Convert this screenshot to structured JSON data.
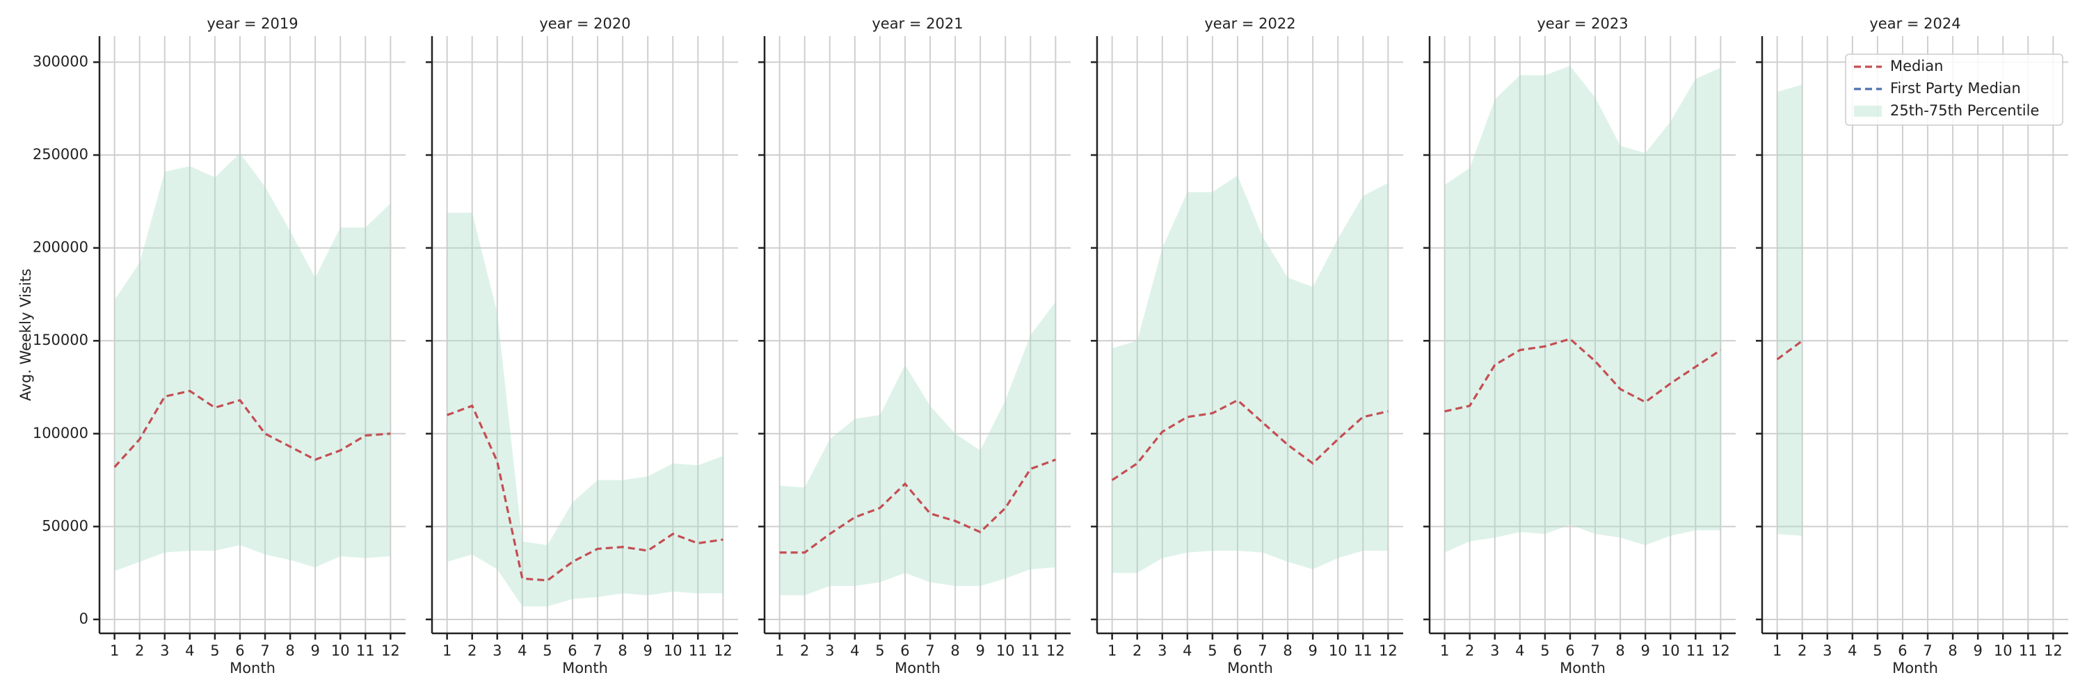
{
  "chart_data": [
    {
      "type": "line",
      "title": "year = 2019",
      "xlabel": "Month",
      "ylabel": "Avg. Weekly Visits",
      "x": [
        1,
        2,
        3,
        4,
        5,
        6,
        7,
        8,
        9,
        10,
        11,
        12
      ],
      "xlim": [
        0.4,
        12.6
      ],
      "ylim": [
        -7500,
        314000
      ],
      "yticks": [
        0,
        50000,
        100000,
        150000,
        200000,
        250000,
        300000
      ],
      "grid": true,
      "series": [
        {
          "values": [
            82000,
            97000,
            120000,
            123000,
            114000,
            118000,
            100000,
            93000,
            86000,
            91000,
            99000,
            100000
          ]
        },
        {
          "values": [
            null,
            null,
            null,
            null,
            null,
            null,
            null,
            null,
            null,
            null,
            null,
            null
          ]
        },
        {
          "lower": [
            26000,
            31000,
            36000,
            37000,
            37000,
            40000,
            35000,
            32000,
            28000,
            34000,
            33000,
            34000
          ],
          "upper": [
            172000,
            192000,
            241000,
            244000,
            238000,
            251000,
            233000,
            209000,
            184000,
            211000,
            211000,
            224000
          ]
        }
      ]
    },
    {
      "type": "line",
      "title": "year = 2020",
      "xlabel": "Month",
      "x": [
        1,
        2,
        3,
        4,
        5,
        6,
        7,
        8,
        9,
        10,
        11,
        12
      ],
      "xlim": [
        0.4,
        12.6
      ],
      "ylim": [
        -7500,
        314000
      ],
      "yticks": [
        0,
        50000,
        100000,
        150000,
        200000,
        250000,
        300000
      ],
      "grid": true,
      "series": [
        {
          "values": [
            110000,
            115000,
            85000,
            22000,
            21000,
            31000,
            38000,
            39000,
            37000,
            46000,
            41000,
            43000
          ]
        },
        {
          "values": [
            null,
            null,
            null,
            null,
            null,
            null,
            null,
            null,
            null,
            null,
            null,
            null
          ]
        },
        {
          "lower": [
            31000,
            35000,
            27000,
            7000,
            7000,
            11000,
            12000,
            14000,
            13000,
            15000,
            14000,
            14000
          ],
          "upper": [
            219000,
            219000,
            165000,
            42000,
            40000,
            63000,
            75000,
            75000,
            77000,
            84000,
            83000,
            88000
          ]
        }
      ]
    },
    {
      "type": "line",
      "title": "year = 2021",
      "xlabel": "Month",
      "x": [
        1,
        2,
        3,
        4,
        5,
        6,
        7,
        8,
        9,
        10,
        11,
        12
      ],
      "xlim": [
        0.4,
        12.6
      ],
      "ylim": [
        -7500,
        314000
      ],
      "yticks": [
        0,
        50000,
        100000,
        150000,
        200000,
        250000,
        300000
      ],
      "grid": true,
      "series": [
        {
          "values": [
            36000,
            36000,
            46000,
            55000,
            60000,
            73000,
            57000,
            53000,
            47000,
            60000,
            81000,
            86000
          ]
        },
        {
          "values": [
            null,
            null,
            null,
            null,
            null,
            null,
            null,
            null,
            null,
            null,
            null,
            null
          ]
        },
        {
          "lower": [
            13000,
            13000,
            18000,
            18000,
            20000,
            25000,
            20000,
            18000,
            18000,
            22000,
            27000,
            28000
          ],
          "upper": [
            72000,
            71000,
            97000,
            108000,
            110000,
            137000,
            115000,
            100000,
            91000,
            118000,
            153000,
            171000
          ]
        }
      ]
    },
    {
      "type": "line",
      "title": "year = 2022",
      "xlabel": "Month",
      "x": [
        1,
        2,
        3,
        4,
        5,
        6,
        7,
        8,
        9,
        10,
        11,
        12
      ],
      "xlim": [
        0.4,
        12.6
      ],
      "ylim": [
        -7500,
        314000
      ],
      "yticks": [
        0,
        50000,
        100000,
        150000,
        200000,
        250000,
        300000
      ],
      "grid": true,
      "series": [
        {
          "values": [
            75000,
            84000,
            101000,
            109000,
            111000,
            118000,
            106000,
            94000,
            84000,
            97000,
            109000,
            112000
          ]
        },
        {
          "values": [
            null,
            null,
            null,
            null,
            null,
            null,
            null,
            null,
            null,
            null,
            null,
            null
          ]
        },
        {
          "lower": [
            25000,
            25000,
            33000,
            36000,
            37000,
            37000,
            36000,
            31000,
            27000,
            33000,
            37000,
            37000
          ],
          "upper": [
            146000,
            150000,
            200000,
            230000,
            230000,
            239000,
            206000,
            184000,
            179000,
            205000,
            228000,
            235000
          ]
        }
      ]
    },
    {
      "type": "line",
      "title": "year = 2023",
      "xlabel": "Month",
      "x": [
        1,
        2,
        3,
        4,
        5,
        6,
        7,
        8,
        9,
        10,
        11,
        12
      ],
      "xlim": [
        0.4,
        12.6
      ],
      "ylim": [
        -7500,
        314000
      ],
      "yticks": [
        0,
        50000,
        100000,
        150000,
        200000,
        250000,
        300000
      ],
      "grid": true,
      "series": [
        {
          "values": [
            112000,
            115000,
            137000,
            145000,
            147000,
            151000,
            139000,
            124000,
            117000,
            127000,
            136000,
            145000
          ]
        },
        {
          "values": [
            null,
            null,
            null,
            null,
            null,
            null,
            null,
            null,
            null,
            null,
            null,
            null
          ]
        },
        {
          "lower": [
            36000,
            42000,
            44000,
            47000,
            46000,
            51000,
            46000,
            44000,
            40000,
            45000,
            48000,
            48000
          ],
          "upper": [
            234000,
            243000,
            280000,
            293000,
            293000,
            298000,
            281000,
            255000,
            251000,
            268000,
            291000,
            297000
          ]
        }
      ]
    },
    {
      "type": "line",
      "title": "year = 2024",
      "xlabel": "Month",
      "x": [
        1,
        2,
        3,
        4,
        5,
        6,
        7,
        8,
        9,
        10,
        11,
        12
      ],
      "xlim": [
        0.4,
        12.6
      ],
      "ylim": [
        -7500,
        314000
      ],
      "yticks": [
        0,
        50000,
        100000,
        150000,
        200000,
        250000,
        300000
      ],
      "grid": true,
      "legend_position": "upper right",
      "series": [
        {
          "values": [
            140000,
            150000,
            null,
            null,
            null,
            null,
            null,
            null,
            null,
            null,
            null,
            null
          ]
        },
        {
          "values": [
            null,
            null,
            null,
            null,
            null,
            null,
            null,
            null,
            null,
            null,
            null,
            null
          ]
        },
        {
          "lower": [
            46000,
            45000,
            null,
            null,
            null,
            null,
            null,
            null,
            null,
            null,
            null,
            null
          ],
          "upper": [
            284000,
            288000,
            null,
            null,
            null,
            null,
            null,
            null,
            null,
            null,
            null,
            null
          ]
        }
      ]
    }
  ],
  "legend": [
    {
      "name": "Median",
      "color": "#c44e52"
    },
    {
      "name": "First Party Median",
      "color": "#4c72b0"
    },
    {
      "name": "25th-75th Percentile",
      "color": "#a8dcc9"
    }
  ]
}
